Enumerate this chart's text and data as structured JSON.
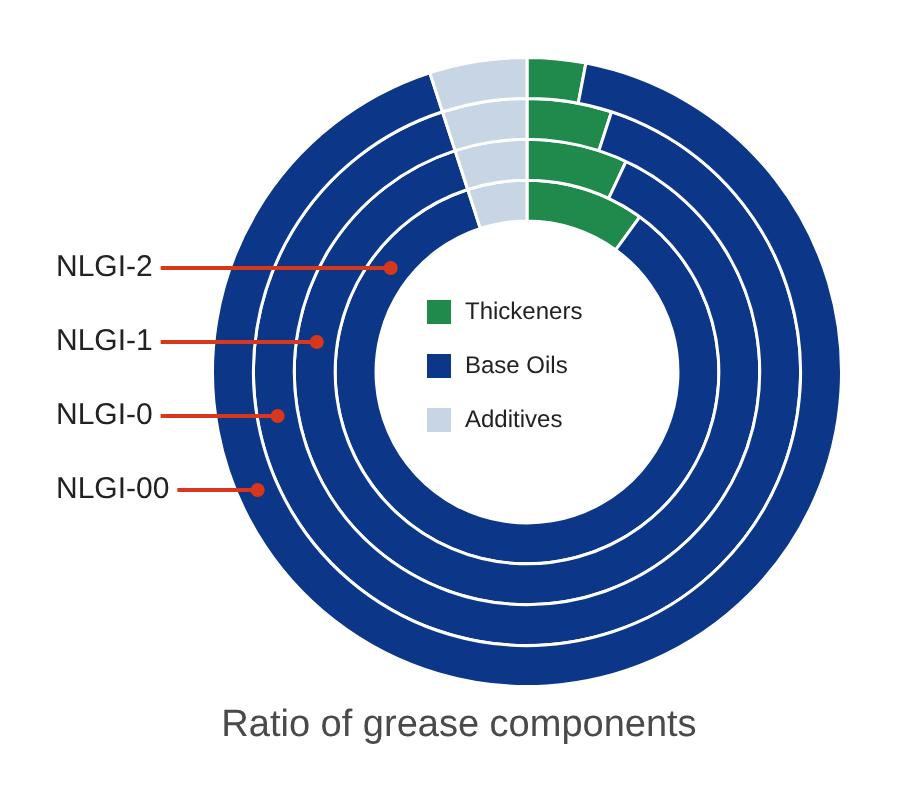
{
  "chart_data": {
    "type": "donut",
    "title": "Ratio of grease components",
    "categories": [
      "Thickeners",
      "Base Oils",
      "Additives"
    ],
    "colors": [
      "#1f8a4c",
      "#0c3687",
      "#c8d5e4"
    ],
    "series": [
      {
        "name": "NLGI-2",
        "values": [
          10,
          85,
          5
        ]
      },
      {
        "name": "NLGI-1",
        "values": [
          7,
          88,
          5
        ]
      },
      {
        "name": "NLGI-0",
        "values": [
          5,
          90,
          5
        ]
      },
      {
        "name": "NLGI-00",
        "values": [
          3,
          92,
          5
        ]
      }
    ],
    "legend": "center"
  }
}
